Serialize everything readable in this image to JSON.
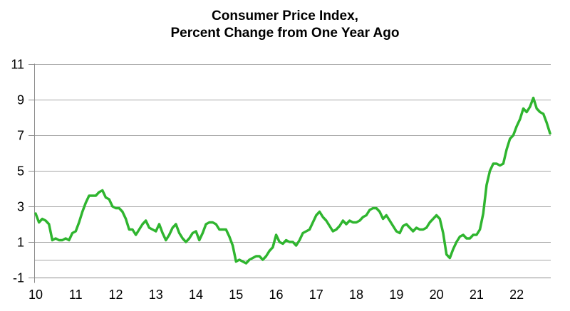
{
  "chart_data": {
    "type": "line",
    "title": "Consumer Price Index, Percent Change from One Year Ago",
    "title_line1": "Consumer Price Index,",
    "title_line2": "Percent Change from One Year Ago",
    "legend": "none",
    "grid": "horizontal-only",
    "x_axis": {
      "tick_labels": [
        "10",
        "11",
        "12",
        "13",
        "14",
        "15",
        "16",
        "17",
        "18",
        "19",
        "20",
        "21",
        "22"
      ],
      "months_per_tick": 12
    },
    "y_axis": {
      "tick_labels": [
        "-1",
        "1",
        "3",
        "5",
        "7",
        "9",
        "11"
      ],
      "tick_values": [
        -1,
        1,
        3,
        5,
        7,
        9,
        11
      ],
      "gridline_values": [
        0,
        1,
        3,
        5,
        7,
        9,
        11
      ],
      "range": [
        -1,
        11
      ]
    },
    "series": [
      {
        "name": "CPI percent change from one year ago",
        "color": "#2FB52F",
        "frequency": "monthly",
        "start": "2010-01",
        "end": "2022-11",
        "values": [
          2.6,
          2.1,
          2.3,
          2.2,
          2.0,
          1.1,
          1.2,
          1.1,
          1.1,
          1.2,
          1.1,
          1.5,
          1.6,
          2.1,
          2.7,
          3.2,
          3.6,
          3.6,
          3.6,
          3.8,
          3.9,
          3.5,
          3.4,
          3.0,
          2.9,
          2.9,
          2.7,
          2.3,
          1.7,
          1.7,
          1.4,
          1.7,
          2.0,
          2.2,
          1.8,
          1.7,
          1.6,
          2.0,
          1.5,
          1.1,
          1.4,
          1.8,
          2.0,
          1.5,
          1.2,
          1.0,
          1.2,
          1.5,
          1.6,
          1.1,
          1.5,
          2.0,
          2.1,
          2.1,
          2.0,
          1.7,
          1.7,
          1.7,
          1.3,
          0.8,
          -0.1,
          0.0,
          -0.1,
          -0.2,
          0.0,
          0.1,
          0.2,
          0.2,
          0.0,
          0.2,
          0.5,
          0.7,
          1.4,
          1.0,
          0.9,
          1.1,
          1.0,
          1.0,
          0.8,
          1.1,
          1.5,
          1.6,
          1.7,
          2.1,
          2.5,
          2.7,
          2.4,
          2.2,
          1.9,
          1.6,
          1.7,
          1.9,
          2.2,
          2.0,
          2.2,
          2.1,
          2.1,
          2.2,
          2.4,
          2.5,
          2.8,
          2.9,
          2.9,
          2.7,
          2.3,
          2.5,
          2.2,
          1.9,
          1.6,
          1.5,
          1.9,
          2.0,
          1.8,
          1.6,
          1.8,
          1.7,
          1.7,
          1.8,
          2.1,
          2.3,
          2.5,
          2.3,
          1.5,
          0.3,
          0.1,
          0.6,
          1.0,
          1.3,
          1.4,
          1.2,
          1.2,
          1.4,
          1.4,
          1.7,
          2.6,
          4.2,
          5.0,
          5.4,
          5.4,
          5.3,
          5.4,
          6.2,
          6.8,
          7.0,
          7.5,
          7.9,
          8.5,
          8.3,
          8.6,
          9.1,
          8.5,
          8.3,
          8.2,
          7.7,
          7.1
        ]
      }
    ],
    "colors": {
      "line": "#2FB52F",
      "gridline": "#A6A6A6",
      "axis": "#8C8C8C",
      "text": "#000000",
      "background": "#FFFFFF"
    }
  }
}
